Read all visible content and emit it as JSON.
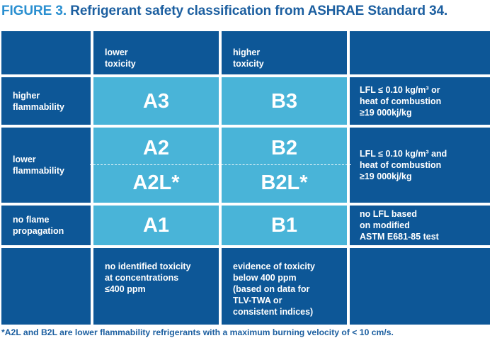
{
  "title": {
    "lead": "FIGURE 3.",
    "text": "Refrigerant safety classification from ASHRAE Standard 34."
  },
  "header": {
    "lower_toxicity": "lower\ntoxicity",
    "higher_toxicity": "higher\ntoxicity"
  },
  "rows": {
    "higher_flammability": {
      "label": "higher\nflammability",
      "a": "A3",
      "b": "B3",
      "criteria": "LFL ≤ 0.10 kg/m³ or\nheat of combustion\n≥19 000kj/kg"
    },
    "lower_flammability": {
      "label": "lower\nflammability",
      "a_top": "A2",
      "b_top": "B2",
      "a_bottom": "A2L*",
      "b_bottom": "B2L*",
      "criteria": "LFL ≤ 0.10 kg/m³ and\nheat of combustion\n≥19 000kj/kg"
    },
    "no_flame_propagation": {
      "label": "no flame\npropagation",
      "a": "A1",
      "b": "B1",
      "criteria": "no LFL based\non modified\nASTM E681-85 test"
    }
  },
  "toxicity_notes": {
    "lower": "no identified toxicity\nat concentrations\n≤400 ppm",
    "higher": "evidence of toxicity\nbelow 400 ppm\n(based on data for\nTLV-TWA or\nconsistent indices)"
  },
  "footnote": "*A2L and B2L are lower flammability refrigerants with a maximum burning velocity of < 10 cm/s.",
  "colors": {
    "dark_blue": "#0d5797",
    "light_blue": "#49b4d8",
    "title_blue": "#1c5fa0",
    "title_lead_blue": "#2a8fd0"
  }
}
